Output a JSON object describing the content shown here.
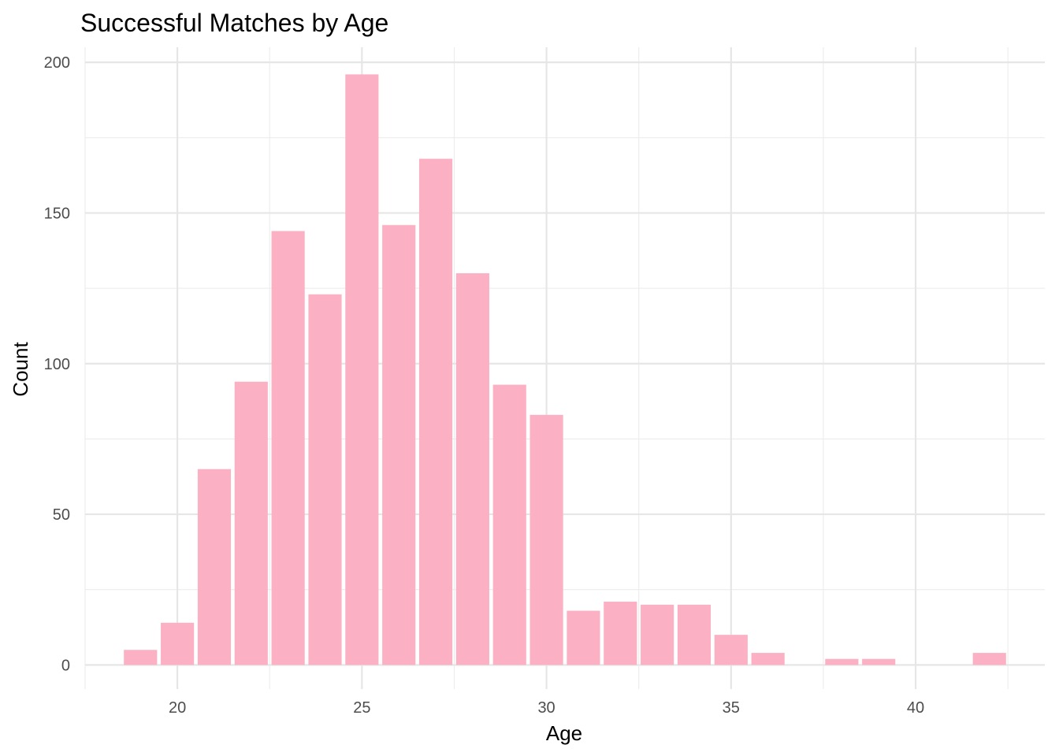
{
  "chart_data": {
    "type": "bar",
    "title": "Successful Matches by Age",
    "xlabel": "Age",
    "ylabel": "Count",
    "x": [
      19,
      20,
      21,
      22,
      23,
      24,
      25,
      26,
      27,
      28,
      29,
      30,
      31,
      32,
      33,
      34,
      35,
      36,
      38,
      39,
      42
    ],
    "values": [
      5,
      14,
      65,
      94,
      144,
      123,
      196,
      146,
      168,
      130,
      93,
      83,
      18,
      21,
      20,
      20,
      10,
      4,
      2,
      2,
      4
    ],
    "xlim": [
      17.5,
      43.5
    ],
    "ylim": [
      -8,
      205
    ],
    "x_ticks": [
      20,
      25,
      30,
      35,
      40
    ],
    "x_tick_labels": [
      "20",
      "25",
      "30",
      "35",
      "40"
    ],
    "y_ticks": [
      0,
      50,
      100,
      150,
      200
    ],
    "y_tick_labels": [
      "0",
      "50",
      "100",
      "150",
      "200"
    ],
    "bar_color": "#FBB1C3",
    "grid": true,
    "legend": "none"
  }
}
